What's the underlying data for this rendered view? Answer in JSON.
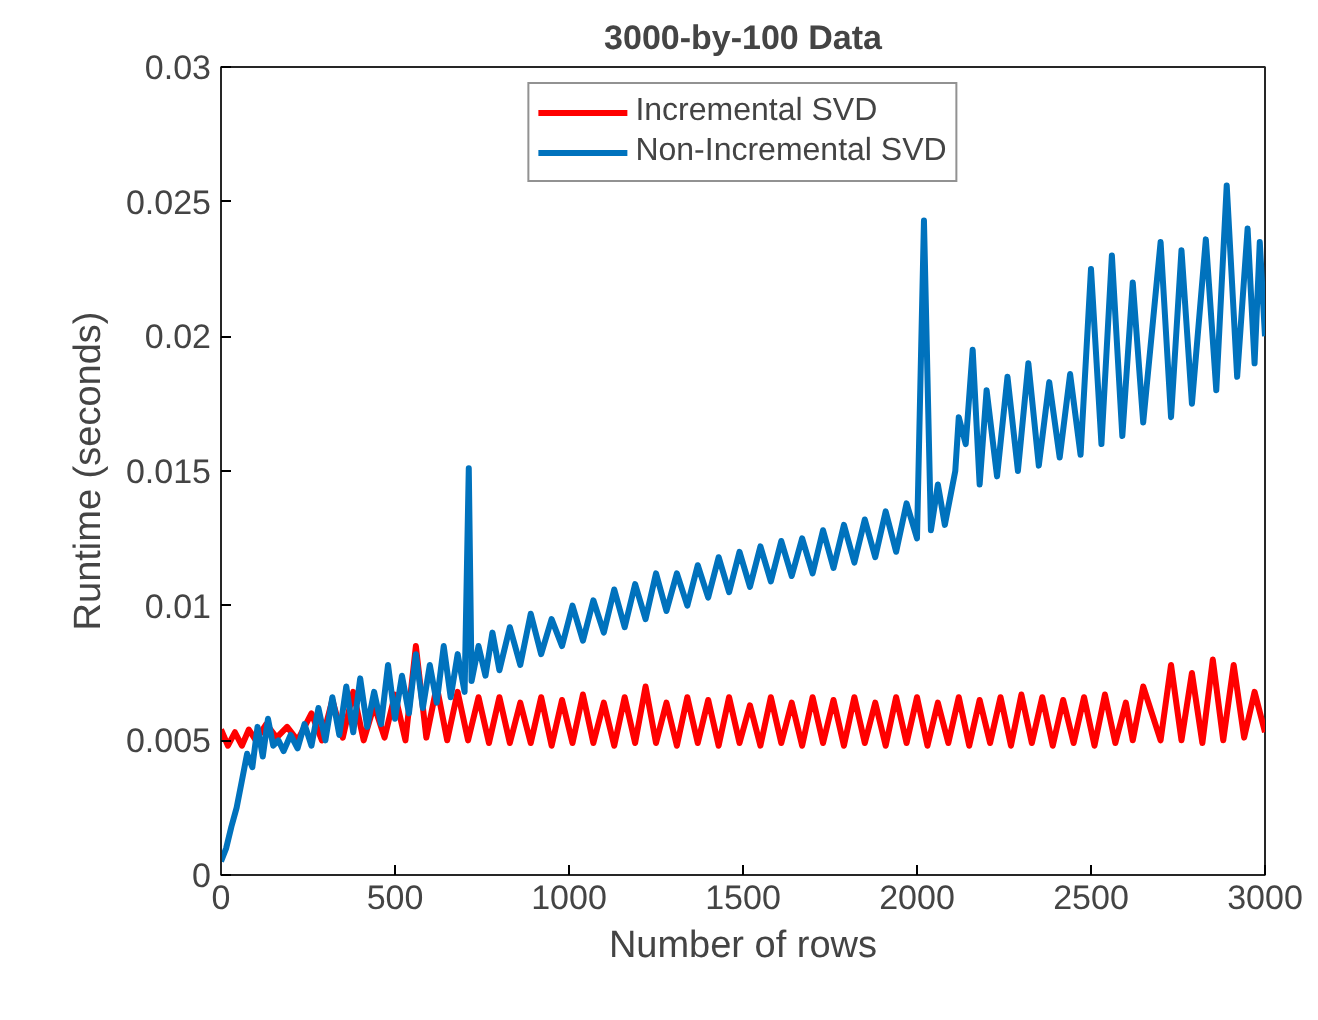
{
  "chart_data": {
    "type": "line",
    "title": "3000-by-100 Data",
    "xlabel": "Number of rows",
    "ylabel": "Runtime (seconds)",
    "xlim": [
      0,
      3000
    ],
    "xticks": [
      0,
      500,
      1000,
      1500,
      2000,
      2500,
      3000
    ],
    "ylim": [
      0,
      0.03
    ],
    "yticks": [
      0,
      0.005,
      0.01,
      0.015,
      0.02,
      0.025,
      0.03
    ],
    "grid": false,
    "legend": "top",
    "marker": "none",
    "line_style": "solid",
    "series": [
      {
        "name": "Incremental SVD",
        "color": "#ff0000",
        "x": [
          0,
          20,
          40,
          60,
          80,
          100,
          130,
          160,
          190,
          220,
          260,
          290,
          320,
          350,
          380,
          410,
          440,
          470,
          500,
          530,
          560,
          590,
          620,
          650,
          680,
          710,
          740,
          770,
          800,
          830,
          860,
          890,
          920,
          950,
          980,
          1010,
          1040,
          1070,
          1100,
          1130,
          1160,
          1190,
          1220,
          1250,
          1280,
          1310,
          1340,
          1370,
          1400,
          1430,
          1460,
          1490,
          1520,
          1550,
          1580,
          1610,
          1640,
          1670,
          1700,
          1730,
          1760,
          1790,
          1820,
          1850,
          1880,
          1910,
          1940,
          1970,
          2000,
          2030,
          2060,
          2090,
          2120,
          2150,
          2180,
          2210,
          2240,
          2270,
          2300,
          2330,
          2360,
          2390,
          2420,
          2450,
          2480,
          2510,
          2540,
          2570,
          2600,
          2620,
          2650,
          2700,
          2730,
          2760,
          2790,
          2820,
          2850,
          2880,
          2910,
          2940,
          2970,
          3000
        ],
        "values": [
          0.0054,
          0.0048,
          0.0053,
          0.0048,
          0.0054,
          0.005,
          0.0056,
          0.0051,
          0.0055,
          0.005,
          0.006,
          0.005,
          0.0065,
          0.0051,
          0.0068,
          0.005,
          0.0063,
          0.0051,
          0.0067,
          0.005,
          0.0085,
          0.0051,
          0.007,
          0.005,
          0.0068,
          0.005,
          0.0066,
          0.0049,
          0.0066,
          0.0049,
          0.0064,
          0.0049,
          0.0066,
          0.0048,
          0.0065,
          0.0049,
          0.0067,
          0.0049,
          0.0064,
          0.0048,
          0.0066,
          0.0049,
          0.007,
          0.0049,
          0.0064,
          0.0048,
          0.0066,
          0.0049,
          0.0065,
          0.0048,
          0.0066,
          0.0049,
          0.0063,
          0.0048,
          0.0066,
          0.0049,
          0.0064,
          0.0048,
          0.0066,
          0.0049,
          0.0065,
          0.0048,
          0.0066,
          0.0049,
          0.0064,
          0.0048,
          0.0066,
          0.0049,
          0.0066,
          0.0048,
          0.0064,
          0.0049,
          0.0066,
          0.0048,
          0.0065,
          0.0049,
          0.0066,
          0.0048,
          0.0067,
          0.0049,
          0.0066,
          0.0048,
          0.0065,
          0.0049,
          0.0066,
          0.0048,
          0.0067,
          0.0049,
          0.0064,
          0.005,
          0.007,
          0.005,
          0.0078,
          0.005,
          0.0075,
          0.0049,
          0.008,
          0.005,
          0.0078,
          0.0051,
          0.0068,
          0.0053
        ]
      },
      {
        "name": "Non-Incremental SVD",
        "color": "#0072bd",
        "x": [
          0,
          15,
          30,
          45,
          60,
          75,
          90,
          105,
          120,
          135,
          150,
          165,
          180,
          200,
          220,
          240,
          260,
          280,
          300,
          320,
          340,
          360,
          380,
          400,
          420,
          440,
          460,
          480,
          500,
          520,
          540,
          560,
          580,
          600,
          620,
          640,
          660,
          680,
          700,
          712,
          720,
          740,
          760,
          780,
          800,
          830,
          860,
          890,
          920,
          950,
          980,
          1010,
          1040,
          1070,
          1100,
          1130,
          1160,
          1190,
          1220,
          1250,
          1280,
          1310,
          1340,
          1370,
          1400,
          1430,
          1460,
          1490,
          1520,
          1550,
          1580,
          1610,
          1640,
          1670,
          1700,
          1730,
          1760,
          1790,
          1820,
          1850,
          1880,
          1910,
          1940,
          1970,
          2000,
          2020,
          2040,
          2060,
          2080,
          2110,
          2120,
          2140,
          2160,
          2180,
          2200,
          2230,
          2260,
          2290,
          2320,
          2350,
          2380,
          2410,
          2440,
          2470,
          2500,
          2530,
          2560,
          2590,
          2620,
          2650,
          2700,
          2730,
          2760,
          2790,
          2830,
          2860,
          2890,
          2920,
          2950,
          2970,
          2985,
          3000
        ],
        "values": [
          0.0005,
          0.001,
          0.0018,
          0.0025,
          0.0035,
          0.0045,
          0.004,
          0.0055,
          0.0044,
          0.0058,
          0.0048,
          0.005,
          0.0046,
          0.0052,
          0.0047,
          0.0056,
          0.0048,
          0.0062,
          0.005,
          0.0066,
          0.0052,
          0.007,
          0.0053,
          0.0073,
          0.0055,
          0.0068,
          0.0056,
          0.0078,
          0.0058,
          0.0074,
          0.006,
          0.0082,
          0.0062,
          0.0078,
          0.0064,
          0.0085,
          0.0066,
          0.0082,
          0.0068,
          0.0151,
          0.0072,
          0.0085,
          0.0074,
          0.009,
          0.0076,
          0.0092,
          0.0078,
          0.0097,
          0.0082,
          0.0095,
          0.0085,
          0.01,
          0.0087,
          0.0102,
          0.009,
          0.0106,
          0.0092,
          0.0108,
          0.0095,
          0.0112,
          0.0098,
          0.0112,
          0.01,
          0.0115,
          0.0103,
          0.0118,
          0.0105,
          0.012,
          0.0107,
          0.0122,
          0.0109,
          0.0124,
          0.0111,
          0.0125,
          0.0112,
          0.0128,
          0.0114,
          0.013,
          0.0116,
          0.0132,
          0.0118,
          0.0135,
          0.012,
          0.0138,
          0.0125,
          0.0243,
          0.0128,
          0.0145,
          0.013,
          0.015,
          0.017,
          0.016,
          0.0195,
          0.0145,
          0.018,
          0.0148,
          0.0185,
          0.015,
          0.019,
          0.0152,
          0.0183,
          0.0155,
          0.0186,
          0.0156,
          0.0225,
          0.016,
          0.023,
          0.0163,
          0.022,
          0.0168,
          0.0235,
          0.017,
          0.0232,
          0.0175,
          0.0236,
          0.018,
          0.0256,
          0.0185,
          0.024,
          0.019,
          0.0235,
          0.02
        ]
      }
    ]
  }
}
